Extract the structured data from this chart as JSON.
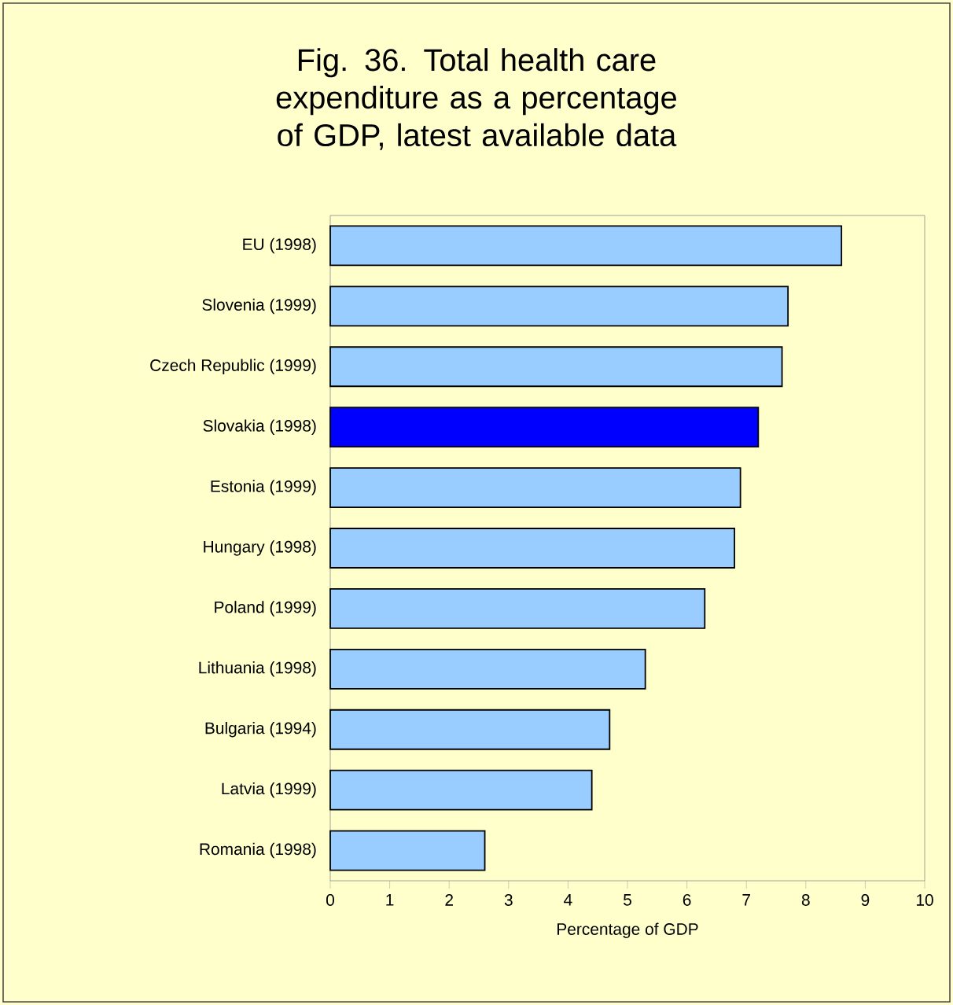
{
  "chart_data": {
    "type": "bar",
    "orientation": "horizontal",
    "title": "Fig. 36. Total health care expenditure as a percentage of GDP, latest available data",
    "xlabel": "Percentage of GDP",
    "categories": [
      "EU (1998)",
      "Slovenia (1999)",
      "Czech Republic (1999)",
      "Slovakia (1998)",
      "Estonia (1999)",
      "Hungary (1998)",
      "Poland (1999)",
      "Lithuania (1998)",
      "Bulgaria (1994)",
      "Latvia (1999)",
      "Romania (1998)"
    ],
    "values": [
      8.6,
      7.7,
      7.6,
      7.2,
      6.9,
      6.8,
      6.3,
      5.3,
      4.7,
      4.4,
      2.6
    ],
    "colors": [
      "#99ccff",
      "#99ccff",
      "#99ccff",
      "#0000ff",
      "#99ccff",
      "#99ccff",
      "#99ccff",
      "#99ccff",
      "#99ccff",
      "#99ccff",
      "#99ccff"
    ],
    "xlim": [
      0,
      10
    ],
    "xticks": [
      0,
      1,
      2,
      3,
      4,
      5,
      6,
      7,
      8,
      9,
      10
    ]
  }
}
